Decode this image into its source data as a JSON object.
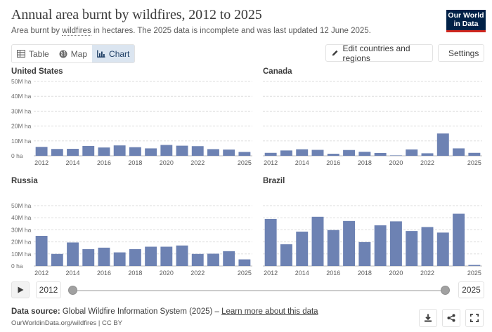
{
  "header": {
    "title": "Annual area burnt by wildfires, 2012 to 2025",
    "subtitle_before": "Area burnt by ",
    "subtitle_link": "wildfires",
    "subtitle_after": " in hectares. The 2025 data is incomplete and was last updated 12 June 2025.",
    "logo_line1": "Our World",
    "logo_line2": "in Data"
  },
  "tabs": [
    {
      "label": "Table",
      "icon": "table-icon"
    },
    {
      "label": "Map",
      "icon": "globe-icon"
    },
    {
      "label": "Chart",
      "icon": "chart-icon",
      "active": true
    }
  ],
  "toolbar": {
    "edit_label": "Edit countries and regions",
    "settings_label": "Settings"
  },
  "timeline": {
    "start_year": "2012",
    "end_year": "2025"
  },
  "footer": {
    "source_label": "Data source:",
    "source_text": " Global Wildfire Information System (2025) – ",
    "source_link": "Learn more about this data",
    "url_text": "OurWorldinData.org/wildfires | CC BY"
  },
  "colors": {
    "bar": "#6d82b3",
    "grid": "#dddddd"
  },
  "chart_data": [
    {
      "type": "bar",
      "title": "United States",
      "unit": "ha",
      "ylim": [
        0,
        50000000
      ],
      "yticks": [
        "0 ha",
        "10M ha",
        "20M ha",
        "30M ha",
        "40M ha",
        "50M ha"
      ],
      "xticks": [
        "2012",
        "2014",
        "2016",
        "2018",
        "2020",
        "2022",
        "2025"
      ],
      "categories": [
        "2012",
        "2013",
        "2014",
        "2015",
        "2016",
        "2017",
        "2018",
        "2019",
        "2020",
        "2021",
        "2022",
        "2023",
        "2024",
        "2025"
      ],
      "values": [
        6000000,
        4600000,
        4700000,
        6600000,
        5600000,
        7000000,
        5800000,
        5000000,
        7300000,
        6800000,
        6500000,
        4500000,
        4200000,
        2600000
      ]
    },
    {
      "type": "bar",
      "title": "Canada",
      "unit": "ha",
      "ylim": [
        0,
        50000000
      ],
      "yticks": [
        "0 ha",
        "10M ha",
        "20M ha",
        "30M ha",
        "40M ha",
        "50M ha"
      ],
      "xticks": [
        "2012",
        "2014",
        "2016",
        "2018",
        "2020",
        "2022",
        "2025"
      ],
      "categories": [
        "2012",
        "2013",
        "2014",
        "2015",
        "2016",
        "2017",
        "2018",
        "2019",
        "2020",
        "2021",
        "2022",
        "2023",
        "2024",
        "2025"
      ],
      "values": [
        2000000,
        3600000,
        4400000,
        4000000,
        1400000,
        3900000,
        2700000,
        1900000,
        300000,
        4300000,
        1700000,
        15000000,
        5000000,
        2000000
      ]
    },
    {
      "type": "bar",
      "title": "Russia",
      "unit": "ha",
      "ylim": [
        0,
        50000000
      ],
      "yticks": [
        "0 ha",
        "10M ha",
        "20M ha",
        "30M ha",
        "40M ha",
        "50M ha"
      ],
      "xticks": [
        "2012",
        "2014",
        "2016",
        "2018",
        "2020",
        "2022",
        "2025"
      ],
      "categories": [
        "2012",
        "2013",
        "2014",
        "2015",
        "2016",
        "2017",
        "2018",
        "2019",
        "2020",
        "2021",
        "2022",
        "2023",
        "2024",
        "2025"
      ],
      "values": [
        25000000,
        10000000,
        19500000,
        14000000,
        15200000,
        11300000,
        14000000,
        16000000,
        16000000,
        17000000,
        10000000,
        10200000,
        12300000,
        5500000
      ]
    },
    {
      "type": "bar",
      "title": "Brazil",
      "unit": "ha",
      "ylim": [
        0,
        50000000
      ],
      "yticks": [
        "0 ha",
        "10M ha",
        "20M ha",
        "30M ha",
        "40M ha",
        "50M ha"
      ],
      "xticks": [
        "2012",
        "2014",
        "2016",
        "2018",
        "2020",
        "2022",
        "2025"
      ],
      "categories": [
        "2012",
        "2013",
        "2014",
        "2015",
        "2016",
        "2017",
        "2018",
        "2019",
        "2020",
        "2021",
        "2022",
        "2023",
        "2024",
        "2025"
      ],
      "values": [
        39000000,
        18000000,
        28500000,
        40800000,
        29800000,
        37300000,
        19800000,
        33700000,
        37000000,
        29000000,
        32300000,
        27700000,
        43300000,
        900000
      ]
    }
  ]
}
